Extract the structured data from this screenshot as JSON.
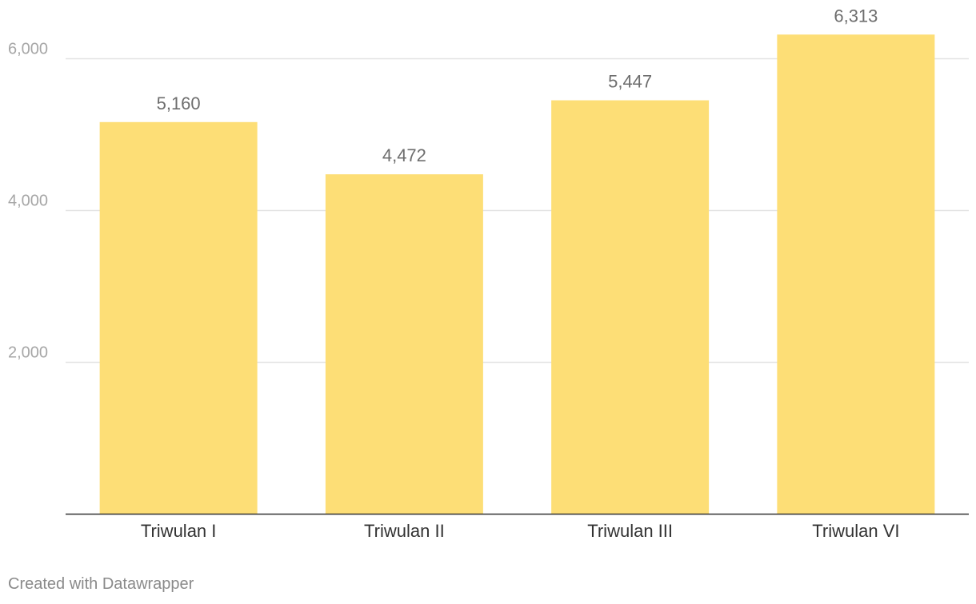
{
  "chart_data": {
    "type": "bar",
    "categories": [
      "Triwulan I",
      "Triwulan II",
      "Triwulan III",
      "Triwulan VI"
    ],
    "values": [
      5160,
      4472,
      5447,
      6313
    ],
    "value_labels": [
      "5,160",
      "4,472",
      "5,447",
      "6,313"
    ],
    "ylim": [
      0,
      6000
    ],
    "yticks": [
      2000,
      4000,
      6000
    ],
    "ytick_labels": [
      "2,000",
      "4,000",
      "6,000"
    ],
    "grid": true,
    "bar_color": "#fdde76"
  },
  "footer": {
    "credit": "Created with Datawrapper"
  }
}
